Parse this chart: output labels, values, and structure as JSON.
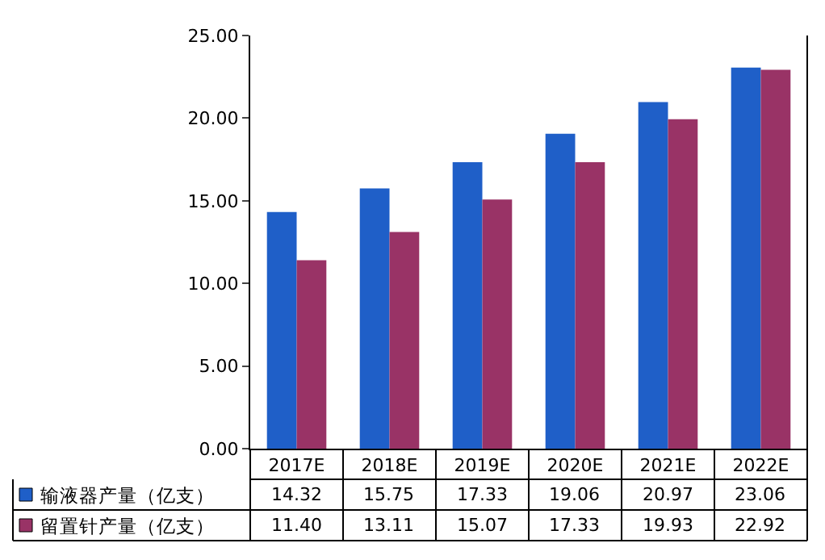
{
  "chart_data": {
    "type": "bar",
    "categories": [
      "2017E",
      "2018E",
      "2019E",
      "2020E",
      "2021E",
      "2022E"
    ],
    "series": [
      {
        "name": "输液器产量（亿支）",
        "color": "#1f5fc8",
        "values": [
          14.32,
          15.75,
          17.33,
          19.06,
          20.97,
          23.06
        ],
        "value_labels": [
          "14.32",
          "15.75",
          "17.33",
          "19.06",
          "20.97",
          "23.06"
        ]
      },
      {
        "name": "留置针产量（亿支）",
        "color": "#993366",
        "values": [
          11.4,
          13.11,
          15.07,
          17.33,
          19.93,
          22.92
        ],
        "value_labels": [
          "11.40",
          "13.11",
          "15.07",
          "17.33",
          "19.93",
          "22.92"
        ]
      }
    ],
    "ylim": [
      0,
      25
    ],
    "yticks": [
      {
        "value": 0,
        "label": "0.00"
      },
      {
        "value": 5,
        "label": "5.00"
      },
      {
        "value": 10,
        "label": "10.00"
      },
      {
        "value": 15,
        "label": "15.00"
      },
      {
        "value": 20,
        "label": "20.00"
      },
      {
        "value": 25,
        "label": "25.00"
      }
    ],
    "grid": false,
    "legend": "bottom left"
  }
}
